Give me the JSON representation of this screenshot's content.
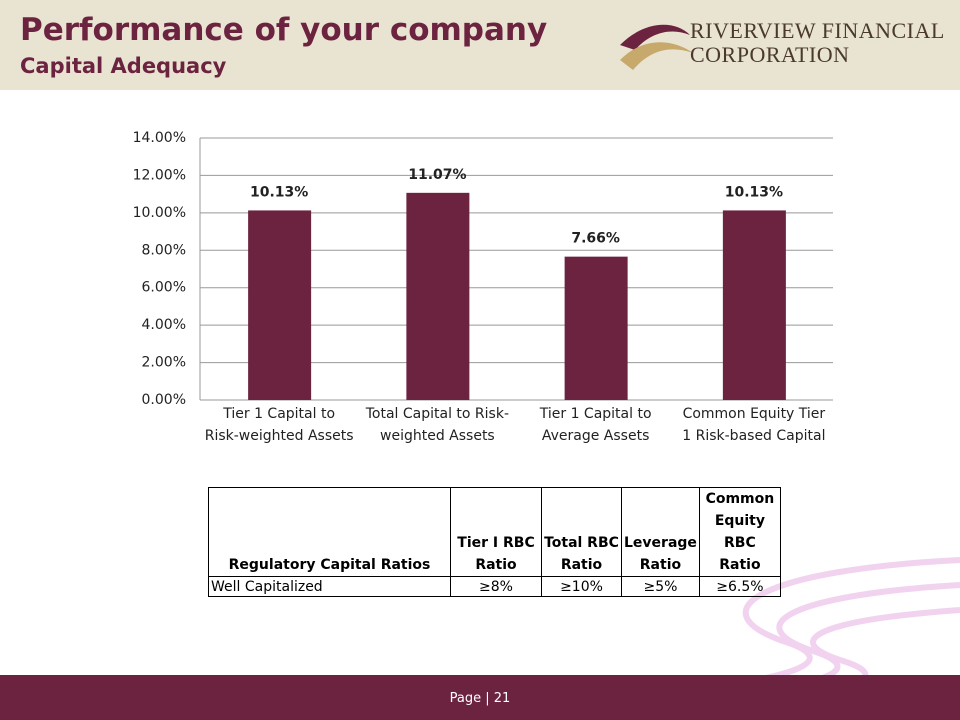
{
  "header": {
    "title": "Performance of your company",
    "subtitle": "Capital Adequacy",
    "logo_lines": [
      "RIVERVIEW FINANCIAL",
      "CORPORATION"
    ]
  },
  "chart_data": {
    "type": "bar",
    "categories": [
      "Tier 1 Capital to Risk-weighted Assets",
      "Total Capital to Risk-weighted Assets",
      "Tier 1 Capital to Average Assets",
      "Common Equity Tier 1 Risk-based Capital"
    ],
    "values": [
      10.13,
      11.07,
      7.66,
      10.13
    ],
    "value_labels": [
      "10.13%",
      "11.07%",
      "7.66%",
      "10.13%"
    ],
    "color": "#6b2340",
    "ylim": [
      0,
      14
    ],
    "yticks": [
      {
        "value": 0,
        "label": "0.00%"
      },
      {
        "value": 2,
        "label": "2.00%"
      },
      {
        "value": 4,
        "label": "4.00%"
      },
      {
        "value": 6,
        "label": "6.00%"
      },
      {
        "value": 8,
        "label": "8.00%"
      },
      {
        "value": 10,
        "label": "10.00%"
      },
      {
        "value": 12,
        "label": "12.00%"
      },
      {
        "value": 14,
        "label": "14.00%"
      }
    ],
    "grid": true
  },
  "table": {
    "header": [
      "Regulatory Capital Ratios",
      "Tier I RBC Ratio",
      "Total RBC Ratio",
      "Leverage Ratio",
      "Common Equity RBC Ratio"
    ],
    "rows": [
      [
        "Well Capitalized",
        "≥8%",
        "≥10%",
        "≥5%",
        "≥6.5%"
      ]
    ]
  },
  "footer": {
    "page": "Page | 21"
  }
}
